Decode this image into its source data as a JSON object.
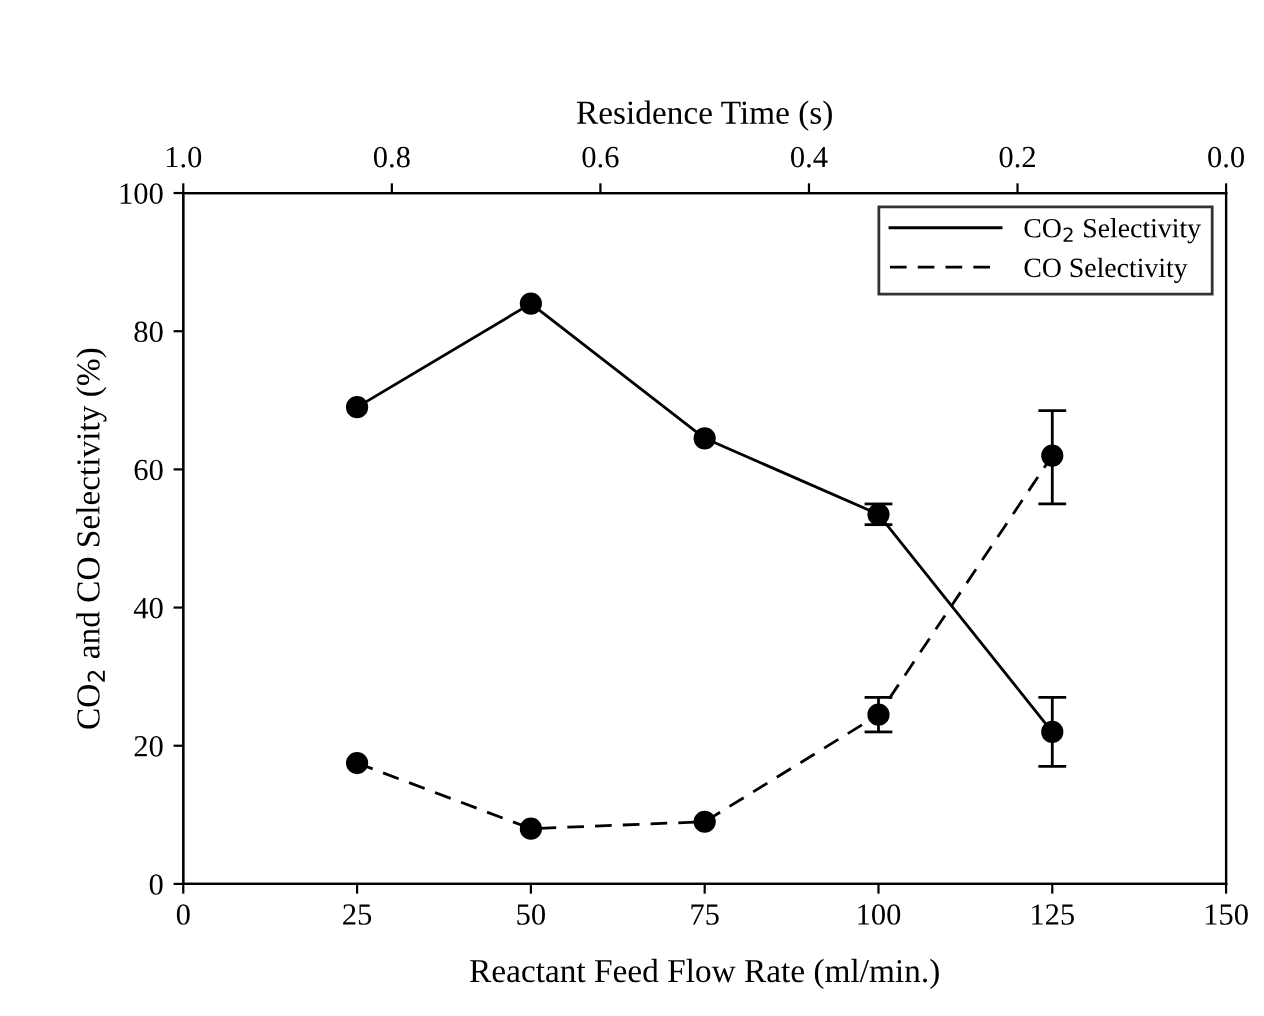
{
  "chart_data": {
    "type": "line",
    "xlabel": "Reactant Feed Flow Rate (ml/min.)",
    "ylabel": "CO$_{2}$ and CO Selectivity (%)",
    "x2label": "Residence Time (s)",
    "x": [
      25,
      50,
      75,
      100,
      125
    ],
    "series": [
      {
        "name": "CO$_{2}$ Selectivity",
        "color": "#000000",
        "line_style": "solid",
        "values": [
          69,
          84,
          64.5,
          53.5,
          22
        ],
        "errors": [
          null,
          null,
          null,
          [
            52,
            55
          ],
          [
            17,
            27
          ]
        ]
      },
      {
        "name": "CO Selectivity",
        "color": "#000000",
        "line_style": "dashed",
        "values": [
          17.5,
          8,
          9,
          24.5,
          62
        ],
        "errors": [
          null,
          null,
          null,
          [
            22,
            27
          ],
          [
            55,
            68.5
          ]
        ]
      }
    ],
    "xlim": [
      0,
      150
    ],
    "xticks": [
      0,
      25,
      50,
      75,
      100,
      125,
      150
    ],
    "ylim": [
      0,
      100
    ],
    "yticks": [
      0,
      20,
      40,
      60,
      80,
      100
    ],
    "x2lim": [
      1.0,
      0.0
    ],
    "x2ticks": [
      {
        "value": 1.0,
        "label": "1.0"
      },
      0.8,
      0.6,
      0.4,
      0.2,
      {
        "value": 0.0,
        "label": "0.0"
      }
    ],
    "marker": "circle",
    "legend": "top right",
    "grid": false
  }
}
